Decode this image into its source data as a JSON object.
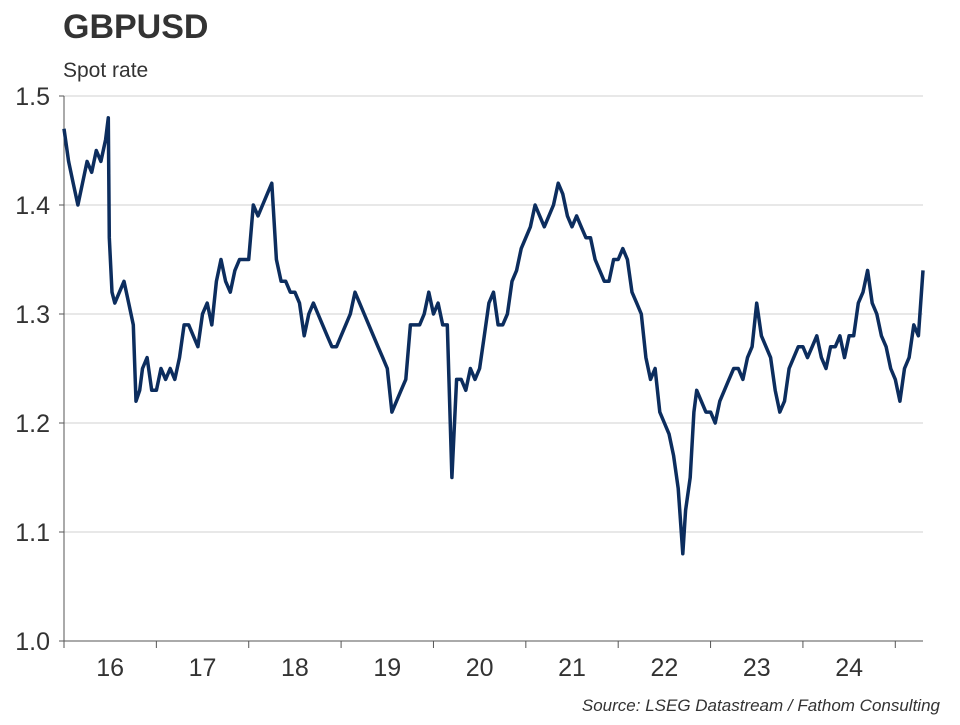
{
  "chart_data": {
    "type": "line",
    "title": "GBPUSD",
    "subtitle": "Spot rate",
    "source": "Source: LSEG Datastream / Fathom Consulting",
    "color": "#0c2d5e",
    "grid": true,
    "x": [
      16,
      16.05,
      16.1,
      16.15,
      16.2,
      16.25,
      16.3,
      16.35,
      16.4,
      16.45,
      16.48,
      16.49,
      16.52,
      16.55,
      16.6,
      16.65,
      16.7,
      16.75,
      16.78,
      16.82,
      16.85,
      16.9,
      16.95,
      17,
      17.05,
      17.1,
      17.15,
      17.2,
      17.25,
      17.3,
      17.35,
      17.4,
      17.45,
      17.5,
      17.55,
      17.6,
      17.65,
      17.7,
      17.75,
      17.8,
      17.85,
      17.9,
      17.95,
      18,
      18.05,
      18.1,
      18.15,
      18.2,
      18.25,
      18.3,
      18.35,
      18.4,
      18.45,
      18.5,
      18.55,
      18.6,
      18.65,
      18.7,
      18.75,
      18.8,
      18.85,
      18.9,
      18.95,
      19,
      19.05,
      19.1,
      19.15,
      19.2,
      19.25,
      19.3,
      19.35,
      19.4,
      19.45,
      19.5,
      19.55,
      19.6,
      19.65,
      19.7,
      19.75,
      19.8,
      19.85,
      19.9,
      19.95,
      20,
      20.05,
      20.1,
      20.15,
      20.2,
      20.25,
      20.3,
      20.35,
      20.4,
      20.45,
      20.5,
      20.55,
      20.6,
      20.65,
      20.7,
      20.75,
      20.8,
      20.85,
      20.9,
      20.95,
      21,
      21.05,
      21.1,
      21.15,
      21.2,
      21.25,
      21.3,
      21.35,
      21.4,
      21.45,
      21.5,
      21.55,
      21.6,
      21.65,
      21.7,
      21.75,
      21.8,
      21.85,
      21.9,
      21.95,
      22,
      22.05,
      22.1,
      22.15,
      22.2,
      22.25,
      22.3,
      22.35,
      22.4,
      22.45,
      22.5,
      22.55,
      22.6,
      22.65,
      22.7,
      22.73,
      22.78,
      22.82,
      22.85,
      22.9,
      22.95,
      23,
      23.05,
      23.1,
      23.15,
      23.2,
      23.25,
      23.3,
      23.35,
      23.4,
      23.45,
      23.5,
      23.55,
      23.6,
      23.65,
      23.7,
      23.75,
      23.8,
      23.85,
      23.9,
      23.95,
      24,
      24.05,
      24.1,
      24.15,
      24.2,
      24.25,
      24.3,
      24.35,
      24.4,
      24.45,
      24.5,
      24.55,
      24.6,
      24.65,
      24.7,
      24.75,
      24.8,
      24.85,
      24.9,
      24.95,
      25,
      25.05,
      25.1,
      25.15,
      25.2,
      25.25,
      25.3
    ],
    "values": [
      1.47,
      1.44,
      1.42,
      1.4,
      1.42,
      1.44,
      1.43,
      1.45,
      1.44,
      1.46,
      1.48,
      1.37,
      1.32,
      1.31,
      1.32,
      1.33,
      1.31,
      1.29,
      1.22,
      1.23,
      1.25,
      1.26,
      1.23,
      1.23,
      1.25,
      1.24,
      1.25,
      1.24,
      1.26,
      1.29,
      1.29,
      1.28,
      1.27,
      1.3,
      1.31,
      1.29,
      1.33,
      1.35,
      1.33,
      1.32,
      1.34,
      1.35,
      1.35,
      1.35,
      1.4,
      1.39,
      1.4,
      1.41,
      1.42,
      1.35,
      1.33,
      1.33,
      1.32,
      1.32,
      1.31,
      1.28,
      1.3,
      1.31,
      1.3,
      1.29,
      1.28,
      1.27,
      1.27,
      1.28,
      1.29,
      1.3,
      1.32,
      1.31,
      1.3,
      1.29,
      1.28,
      1.27,
      1.26,
      1.25,
      1.21,
      1.22,
      1.23,
      1.24,
      1.29,
      1.29,
      1.29,
      1.3,
      1.32,
      1.3,
      1.31,
      1.29,
      1.29,
      1.15,
      1.24,
      1.24,
      1.23,
      1.25,
      1.24,
      1.25,
      1.28,
      1.31,
      1.32,
      1.29,
      1.29,
      1.3,
      1.33,
      1.34,
      1.36,
      1.37,
      1.38,
      1.4,
      1.39,
      1.38,
      1.39,
      1.4,
      1.42,
      1.41,
      1.39,
      1.38,
      1.39,
      1.38,
      1.37,
      1.37,
      1.35,
      1.34,
      1.33,
      1.33,
      1.35,
      1.35,
      1.36,
      1.35,
      1.32,
      1.31,
      1.3,
      1.26,
      1.24,
      1.25,
      1.21,
      1.2,
      1.19,
      1.17,
      1.14,
      1.08,
      1.12,
      1.15,
      1.21,
      1.23,
      1.22,
      1.21,
      1.21,
      1.2,
      1.22,
      1.23,
      1.24,
      1.25,
      1.25,
      1.24,
      1.26,
      1.27,
      1.31,
      1.28,
      1.27,
      1.26,
      1.23,
      1.21,
      1.22,
      1.25,
      1.26,
      1.27,
      1.27,
      1.26,
      1.27,
      1.28,
      1.26,
      1.25,
      1.27,
      1.27,
      1.28,
      1.26,
      1.28,
      1.28,
      1.31,
      1.32,
      1.34,
      1.31,
      1.3,
      1.28,
      1.27,
      1.25,
      1.24,
      1.22,
      1.25,
      1.26,
      1.29,
      1.28,
      1.34
    ],
    "xlim": [
      16,
      25.3
    ],
    "xticks": [
      {
        "value": 16.5,
        "label": "16"
      },
      {
        "value": 17.5,
        "label": "17"
      },
      {
        "value": 18.5,
        "label": "18"
      },
      {
        "value": 19.5,
        "label": "19"
      },
      {
        "value": 20.5,
        "label": "20"
      },
      {
        "value": 21.5,
        "label": "21"
      },
      {
        "value": 22.5,
        "label": "22"
      },
      {
        "value": 23.5,
        "label": "23"
      },
      {
        "value": 24.5,
        "label": "24"
      }
    ],
    "xtick_marks": [
      16,
      17,
      18,
      19,
      20,
      21,
      22,
      23,
      24,
      25
    ],
    "ylim": [
      1.0,
      1.5
    ],
    "yticks": [
      {
        "value": 1,
        "label": "1.0"
      },
      1.1,
      1.2,
      1.3,
      1.4,
      {
        "value": 1.5,
        "label": "1.5"
      }
    ]
  }
}
